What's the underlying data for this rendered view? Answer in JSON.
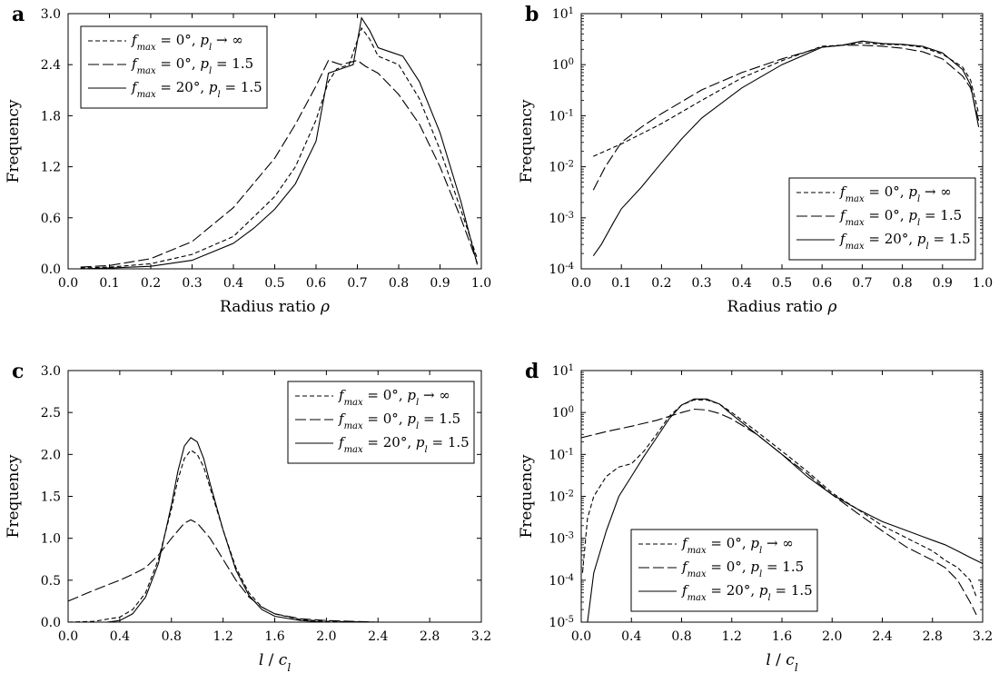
{
  "chart_data": [
    {
      "id": "a",
      "panel_label": "a",
      "type": "line",
      "yscale": "linear",
      "xlabel": "Radius ratio ρ",
      "ylabel": "Frequency",
      "xlim": [
        0,
        1
      ],
      "ylim": [
        0,
        3
      ],
      "xticks": [
        0.0,
        0.1,
        0.2,
        0.3,
        0.4,
        0.5,
        0.6,
        0.7,
        0.8,
        0.9,
        1.0
      ],
      "xtick_labels": [
        "0.0",
        "0.1",
        "0.2",
        "0.3",
        "0.4",
        "0.5",
        "0.6",
        "0.7",
        "0.8",
        "0.9",
        "1.0"
      ],
      "yticks": [
        0,
        0.6,
        1.2,
        1.8,
        2.4,
        3.0
      ],
      "ytick_labels": [
        "0.0",
        "0.6",
        "1.2",
        "1.8",
        "2.4",
        "3.0"
      ],
      "legend_position": "top-left",
      "series": [
        {
          "name": "f_max = 0°, p_l → ∞",
          "style": "short-dash",
          "x": [
            0.03,
            0.1,
            0.2,
            0.3,
            0.4,
            0.5,
            0.55,
            0.6,
            0.63,
            0.65,
            0.68,
            0.71,
            0.73,
            0.75,
            0.8,
            0.85,
            0.9,
            0.95,
            0.99
          ],
          "y": [
            0.01,
            0.02,
            0.06,
            0.17,
            0.38,
            0.85,
            1.2,
            1.75,
            2.2,
            2.35,
            2.4,
            2.83,
            2.7,
            2.5,
            2.4,
            2.0,
            1.4,
            0.7,
            0.12
          ]
        },
        {
          "name": "f_max = 0°, p_l = 1.5",
          "style": "long-dash",
          "x": [
            0.03,
            0.1,
            0.2,
            0.3,
            0.4,
            0.5,
            0.55,
            0.6,
            0.63,
            0.66,
            0.7,
            0.72,
            0.75,
            0.8,
            0.85,
            0.9,
            0.95,
            0.99
          ],
          "y": [
            0.02,
            0.04,
            0.12,
            0.32,
            0.72,
            1.3,
            1.7,
            2.15,
            2.45,
            2.4,
            2.45,
            2.38,
            2.3,
            2.05,
            1.7,
            1.2,
            0.6,
            0.07
          ]
        },
        {
          "name": "f_max = 20°, p_l = 1.5",
          "style": "solid",
          "x": [
            0.03,
            0.1,
            0.2,
            0.3,
            0.4,
            0.45,
            0.5,
            0.55,
            0.6,
            0.63,
            0.66,
            0.69,
            0.71,
            0.73,
            0.75,
            0.78,
            0.81,
            0.85,
            0.9,
            0.95,
            0.99
          ],
          "y": [
            0.0,
            0.01,
            0.03,
            0.1,
            0.3,
            0.48,
            0.7,
            1.0,
            1.5,
            2.3,
            2.35,
            2.4,
            2.95,
            2.8,
            2.6,
            2.55,
            2.5,
            2.2,
            1.6,
            0.8,
            0.05
          ]
        }
      ]
    },
    {
      "id": "b",
      "panel_label": "b",
      "type": "line",
      "yscale": "log",
      "xlabel": "Radius ratio ρ",
      "ylabel": "Frequency",
      "xlim": [
        0,
        1
      ],
      "ylim": [
        0.0001,
        10
      ],
      "xticks": [
        0.0,
        0.1,
        0.2,
        0.3,
        0.4,
        0.5,
        0.6,
        0.7,
        0.8,
        0.9,
        1.0
      ],
      "xtick_labels": [
        "0.0",
        "0.1",
        "0.2",
        "0.3",
        "0.4",
        "0.5",
        "0.6",
        "0.7",
        "0.8",
        "0.9",
        "1.0"
      ],
      "yticks": [
        0.0001,
        0.001,
        0.01,
        0.1,
        1,
        10
      ],
      "ytick_exponents": [
        "-4",
        "-3",
        "-2",
        "-1",
        "0",
        "1"
      ],
      "legend_position": "bottom-right",
      "series": [
        {
          "name": "f_max = 0°, p_l → ∞",
          "style": "short-dash",
          "x": [
            0.03,
            0.1,
            0.2,
            0.3,
            0.4,
            0.5,
            0.6,
            0.65,
            0.7,
            0.75,
            0.8,
            0.85,
            0.9,
            0.95,
            0.97,
            0.99
          ],
          "y": [
            0.016,
            0.028,
            0.07,
            0.2,
            0.55,
            1.2,
            2.3,
            2.4,
            2.7,
            2.5,
            2.45,
            2.2,
            1.6,
            0.9,
            0.5,
            0.11
          ]
        },
        {
          "name": "f_max = 0°, p_l = 1.5",
          "style": "long-dash",
          "x": [
            0.03,
            0.06,
            0.1,
            0.15,
            0.2,
            0.3,
            0.4,
            0.5,
            0.6,
            0.65,
            0.7,
            0.75,
            0.8,
            0.85,
            0.9,
            0.95,
            0.97,
            0.99
          ],
          "y": [
            0.0035,
            0.01,
            0.03,
            0.06,
            0.11,
            0.32,
            0.7,
            1.3,
            2.2,
            2.4,
            2.4,
            2.3,
            2.1,
            1.8,
            1.3,
            0.6,
            0.35,
            0.08
          ]
        },
        {
          "name": "f_max = 20°, p_l = 1.5",
          "style": "solid",
          "x": [
            0.03,
            0.05,
            0.08,
            0.1,
            0.15,
            0.2,
            0.25,
            0.3,
            0.4,
            0.5,
            0.6,
            0.65,
            0.7,
            0.75,
            0.8,
            0.85,
            0.9,
            0.95,
            0.97,
            0.99
          ],
          "y": [
            0.00018,
            0.0003,
            0.0008,
            0.0015,
            0.004,
            0.012,
            0.035,
            0.09,
            0.35,
            1.0,
            2.2,
            2.4,
            2.9,
            2.6,
            2.5,
            2.3,
            1.7,
            0.8,
            0.4,
            0.06
          ]
        }
      ]
    },
    {
      "id": "c",
      "panel_label": "c",
      "type": "line",
      "yscale": "linear",
      "xlabel": "l / c_l",
      "ylabel": "Frequency",
      "xlim": [
        0,
        3.2
      ],
      "ylim": [
        0,
        3
      ],
      "xticks": [
        0.0,
        0.4,
        0.8,
        1.2,
        1.6,
        2.0,
        2.4,
        2.8,
        3.2
      ],
      "xtick_labels": [
        "0.0",
        "0.4",
        "0.8",
        "1.2",
        "1.6",
        "2.0",
        "2.4",
        "2.8",
        "3.2"
      ],
      "yticks": [
        0,
        0.5,
        1.0,
        1.5,
        2.0,
        2.5,
        3.0
      ],
      "ytick_labels": [
        "0.0",
        "0.5",
        "1.0",
        "1.5",
        "2.0",
        "2.5",
        "3.0"
      ],
      "legend_position": "top-right",
      "series": [
        {
          "name": "f_max = 0°, p_l → ∞",
          "style": "short-dash",
          "x": [
            0.0,
            0.2,
            0.4,
            0.5,
            0.6,
            0.7,
            0.8,
            0.85,
            0.9,
            0.95,
            1.0,
            1.05,
            1.1,
            1.2,
            1.3,
            1.4,
            1.5,
            1.6,
            1.8,
            2.0,
            2.4,
            3.2
          ],
          "y": [
            0.0,
            0.01,
            0.06,
            0.15,
            0.35,
            0.75,
            1.35,
            1.7,
            1.95,
            2.05,
            2.0,
            1.85,
            1.6,
            1.1,
            0.65,
            0.35,
            0.18,
            0.1,
            0.03,
            0.01,
            0.0,
            0.0
          ]
        },
        {
          "name": "f_max = 0°, p_l = 1.5",
          "style": "long-dash",
          "x": [
            0.0,
            0.2,
            0.4,
            0.5,
            0.6,
            0.7,
            0.8,
            0.9,
            0.95,
            1.0,
            1.1,
            1.2,
            1.3,
            1.4,
            1.5,
            1.6,
            1.8,
            2.0,
            2.4,
            3.2
          ],
          "y": [
            0.25,
            0.38,
            0.5,
            0.57,
            0.65,
            0.8,
            1.0,
            1.18,
            1.22,
            1.18,
            1.0,
            0.75,
            0.5,
            0.3,
            0.18,
            0.1,
            0.04,
            0.02,
            0.0,
            0.0
          ]
        },
        {
          "name": "f_max = 20°, p_l = 1.5",
          "style": "solid",
          "x": [
            0.0,
            0.3,
            0.4,
            0.5,
            0.6,
            0.7,
            0.8,
            0.85,
            0.9,
            0.95,
            1.0,
            1.05,
            1.1,
            1.2,
            1.3,
            1.4,
            1.5,
            1.6,
            1.8,
            2.0,
            2.4,
            3.2
          ],
          "y": [
            0.0,
            0.0,
            0.02,
            0.1,
            0.3,
            0.7,
            1.4,
            1.8,
            2.1,
            2.2,
            2.15,
            1.95,
            1.65,
            1.1,
            0.62,
            0.32,
            0.15,
            0.07,
            0.02,
            0.0,
            0.0,
            0.0
          ]
        }
      ]
    },
    {
      "id": "d",
      "panel_label": "d",
      "type": "line",
      "yscale": "log",
      "xlabel": "l / c_l",
      "ylabel": "Frequency",
      "xlim": [
        0,
        3.2
      ],
      "ylim": [
        1e-05,
        10
      ],
      "xticks": [
        0.0,
        0.4,
        0.8,
        1.2,
        1.6,
        2.0,
        2.4,
        2.8,
        3.2
      ],
      "xtick_labels": [
        "0.0",
        "0.4",
        "0.8",
        "1.2",
        "1.6",
        "2.0",
        "2.4",
        "2.8",
        "3.2"
      ],
      "yticks": [
        1e-05,
        0.0001,
        0.001,
        0.01,
        0.1,
        1,
        10
      ],
      "ytick_exponents": [
        "-5",
        "-4",
        "-3",
        "-2",
        "-1",
        "0",
        "1"
      ],
      "legend_position": "bottom-left",
      "series": [
        {
          "name": "f_max = 0°, p_l → ∞",
          "style": "short-dash",
          "x": [
            0.01,
            0.05,
            0.1,
            0.2,
            0.3,
            0.4,
            0.5,
            0.6,
            0.7,
            0.8,
            0.9,
            1.0,
            1.1,
            1.2,
            1.4,
            1.6,
            1.8,
            2.0,
            2.2,
            2.4,
            2.6,
            2.8,
            2.9,
            3.0,
            3.1,
            3.15
          ],
          "y": [
            0.00015,
            0.003,
            0.01,
            0.03,
            0.05,
            0.06,
            0.12,
            0.3,
            0.8,
            1.5,
            2.0,
            2.0,
            1.6,
            1.0,
            0.35,
            0.12,
            0.04,
            0.012,
            0.005,
            0.002,
            0.001,
            0.0005,
            0.0003,
            0.0002,
            0.0001,
            4e-05
          ]
        },
        {
          "name": "f_max = 0°, p_l = 1.5",
          "style": "long-dash",
          "x": [
            0.0,
            0.2,
            0.4,
            0.6,
            0.8,
            0.9,
            1.0,
            1.1,
            1.2,
            1.4,
            1.6,
            1.8,
            2.0,
            2.2,
            2.4,
            2.6,
            2.8,
            2.9,
            3.0,
            3.1,
            3.15
          ],
          "y": [
            0.25,
            0.35,
            0.47,
            0.65,
            1.0,
            1.2,
            1.15,
            0.95,
            0.7,
            0.3,
            0.1,
            0.035,
            0.011,
            0.004,
            0.0015,
            0.0006,
            0.0003,
            0.0002,
            0.0001,
            3e-05,
            1.5e-05
          ]
        },
        {
          "name": "f_max = 20°, p_l = 1.5",
          "style": "solid",
          "x": [
            0.05,
            0.1,
            0.2,
            0.3,
            0.4,
            0.5,
            0.6,
            0.7,
            0.8,
            0.9,
            1.0,
            1.1,
            1.2,
            1.4,
            1.6,
            1.8,
            2.0,
            2.2,
            2.4,
            2.6,
            2.8,
            2.9,
            3.0,
            3.1,
            3.2
          ],
          "y": [
            1e-05,
            0.00015,
            0.0015,
            0.01,
            0.03,
            0.09,
            0.25,
            0.7,
            1.5,
            2.1,
            2.1,
            1.6,
            0.9,
            0.3,
            0.1,
            0.03,
            0.011,
            0.005,
            0.0025,
            0.0015,
            0.0009,
            0.0007,
            0.0005,
            0.00035,
            0.00025
          ]
        }
      ]
    }
  ]
}
